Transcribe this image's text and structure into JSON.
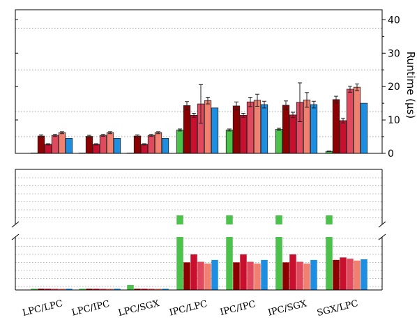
{
  "chart_data": [
    {
      "type": "bar",
      "panel": "top",
      "ylabel": "Runtime (µs)",
      "ylim": [
        0,
        43
      ],
      "yticks": [
        0,
        10,
        20,
        30,
        40
      ],
      "grid": true,
      "categories": [
        "LPC/LPC",
        "LPC/IPC",
        "LPC/SGX",
        "IPC/LPC",
        "IPC/IPC",
        "IPC/SGX",
        "SGX/LPC"
      ],
      "series": [
        {
          "color": "#4cc24c",
          "values": [
            0.1,
            0.1,
            0.1,
            7.0,
            7.0,
            7.2,
            0.6
          ],
          "errors": [
            0,
            0,
            0,
            0.3,
            0.3,
            0.3,
            0.1
          ]
        },
        {
          "color": "#8b0000",
          "values": [
            5.2,
            5.1,
            5.2,
            14.3,
            14.2,
            14.4,
            16.1
          ],
          "errors": [
            0.3,
            0.3,
            0.3,
            1.2,
            1.2,
            1.3,
            1.0
          ]
        },
        {
          "color": "#c8102e",
          "values": [
            2.7,
            2.7,
            2.7,
            11.4,
            11.4,
            11.5,
            9.8
          ],
          "errors": [
            0.2,
            0.2,
            0.2,
            0.6,
            0.6,
            0.8,
            0.7
          ]
        },
        {
          "color": "#e04a5e",
          "values": [
            5.4,
            5.4,
            5.4,
            14.8,
            15.4,
            15.3,
            19.2
          ],
          "errors": [
            0.3,
            0.3,
            0.3,
            5.8,
            1.4,
            5.8,
            0.9
          ]
        },
        {
          "color": "#f08070",
          "values": [
            6.2,
            6.2,
            6.2,
            15.8,
            15.9,
            16.0,
            19.8
          ],
          "errors": [
            0.3,
            0.3,
            0.3,
            1.0,
            1.8,
            2.2,
            1.0
          ]
        },
        {
          "color": "#1e8fe0",
          "values": [
            4.5,
            4.5,
            4.5,
            13.6,
            14.6,
            14.6,
            15.0
          ],
          "errors": [
            0,
            0,
            0,
            0,
            1.0,
            1.0,
            0
          ]
        }
      ]
    },
    {
      "type": "bar",
      "panel": "bottom",
      "broken_axis": true,
      "grid": true,
      "categories": [
        "LPC/LPC",
        "LPC/IPC",
        "LPC/SGX",
        "IPC/LPC",
        "IPC/IPC",
        "IPC/SGX",
        "SGX/LPC"
      ],
      "series": [
        {
          "color": "#4cc24c",
          "values": [
            0.02,
            0.02,
            0.08,
            1.0,
            1.0,
            1.0,
            1.0
          ]
        },
        {
          "color": "#8b0000",
          "values": [
            0.02,
            0.02,
            0.02,
            0.45,
            0.45,
            0.45,
            0.49
          ]
        },
        {
          "color": "#c8102e",
          "values": [
            0.02,
            0.02,
            0.02,
            0.58,
            0.58,
            0.58,
            0.53
          ]
        },
        {
          "color": "#e04a5e",
          "values": [
            0.02,
            0.02,
            0.02,
            0.46,
            0.46,
            0.46,
            0.51
          ]
        },
        {
          "color": "#f08070",
          "values": [
            0.02,
            0.02,
            0.02,
            0.43,
            0.43,
            0.43,
            0.48
          ]
        },
        {
          "color": "#1e8fe0",
          "values": [
            0.02,
            0.02,
            0.02,
            0.49,
            0.49,
            0.49,
            0.5
          ]
        }
      ]
    }
  ]
}
